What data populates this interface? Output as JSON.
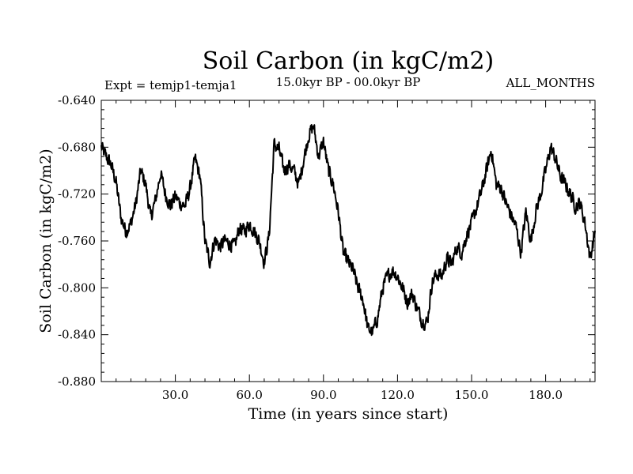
{
  "chart_data": {
    "type": "line",
    "title": "Soil Carbon (in kgC/m2)",
    "subtitle_left": "Expt = temjp1-temja1",
    "subtitle_center": "15.0kyr BP - 00.0kyr BP",
    "subtitle_right": "ALL_MONTHS",
    "xlabel": "Time (in years since start)",
    "ylabel": "Soil Carbon (in kgC/m2)",
    "xlim": [
      0,
      200
    ],
    "ylim": [
      -0.88,
      -0.64
    ],
    "x_ticks": [
      30,
      60,
      90,
      120,
      150,
      180
    ],
    "x_tick_labels": [
      "30.0",
      "60.0",
      "90.0",
      "120.0",
      "150.0",
      "180.0"
    ],
    "y_ticks": [
      -0.64,
      -0.68,
      -0.72,
      -0.76,
      -0.8,
      -0.84,
      -0.88
    ],
    "y_tick_labels": [
      "-0.640",
      "-0.680",
      "-0.720",
      "-0.760",
      "-0.800",
      "-0.840",
      "-0.880"
    ],
    "grid": false,
    "series": [
      {
        "name": "Soil Carbon",
        "color": "#000000",
        "keypoints_x": [
          0,
          2,
          4,
          6,
          8,
          10,
          12,
          14,
          16,
          18,
          20,
          22,
          24,
          26,
          28,
          30,
          32,
          34,
          36,
          38,
          40,
          42,
          44,
          46,
          48,
          50,
          52,
          54,
          56,
          58,
          60,
          62,
          64,
          66,
          68,
          70,
          72,
          74,
          76,
          78,
          80,
          82,
          84,
          86,
          88,
          90,
          92,
          94,
          96,
          98,
          100,
          102,
          104,
          106,
          108,
          110,
          112,
          114,
          116,
          118,
          120,
          122,
          124,
          126,
          128,
          130,
          132,
          134,
          136,
          138,
          140,
          142,
          144,
          146,
          148,
          150,
          152,
          154,
          156,
          158,
          160,
          162,
          164,
          166,
          168,
          170,
          172,
          174,
          176,
          178,
          180,
          182,
          184,
          186,
          188,
          190,
          192,
          194,
          196,
          198,
          200
        ],
        "keypoints_y": [
          -0.68,
          -0.688,
          -0.695,
          -0.71,
          -0.74,
          -0.752,
          -0.745,
          -0.728,
          -0.7,
          -0.712,
          -0.74,
          -0.725,
          -0.702,
          -0.72,
          -0.73,
          -0.722,
          -0.728,
          -0.73,
          -0.715,
          -0.69,
          -0.705,
          -0.76,
          -0.778,
          -0.758,
          -0.765,
          -0.76,
          -0.762,
          -0.765,
          -0.748,
          -0.752,
          -0.745,
          -0.752,
          -0.76,
          -0.778,
          -0.755,
          -0.678,
          -0.682,
          -0.7,
          -0.695,
          -0.7,
          -0.712,
          -0.69,
          -0.67,
          -0.662,
          -0.688,
          -0.675,
          -0.7,
          -0.712,
          -0.735,
          -0.77,
          -0.778,
          -0.785,
          -0.8,
          -0.81,
          -0.835,
          -0.838,
          -0.825,
          -0.8,
          -0.79,
          -0.785,
          -0.79,
          -0.8,
          -0.812,
          -0.805,
          -0.818,
          -0.828,
          -0.83,
          -0.795,
          -0.788,
          -0.79,
          -0.775,
          -0.78,
          -0.765,
          -0.77,
          -0.755,
          -0.745,
          -0.732,
          -0.718,
          -0.7,
          -0.682,
          -0.712,
          -0.715,
          -0.728,
          -0.738,
          -0.748,
          -0.77,
          -0.735,
          -0.76,
          -0.735,
          -0.72,
          -0.7,
          -0.68,
          -0.69,
          -0.705,
          -0.712,
          -0.72,
          -0.73,
          -0.728,
          -0.745,
          -0.775,
          -0.752
        ]
      }
    ]
  }
}
